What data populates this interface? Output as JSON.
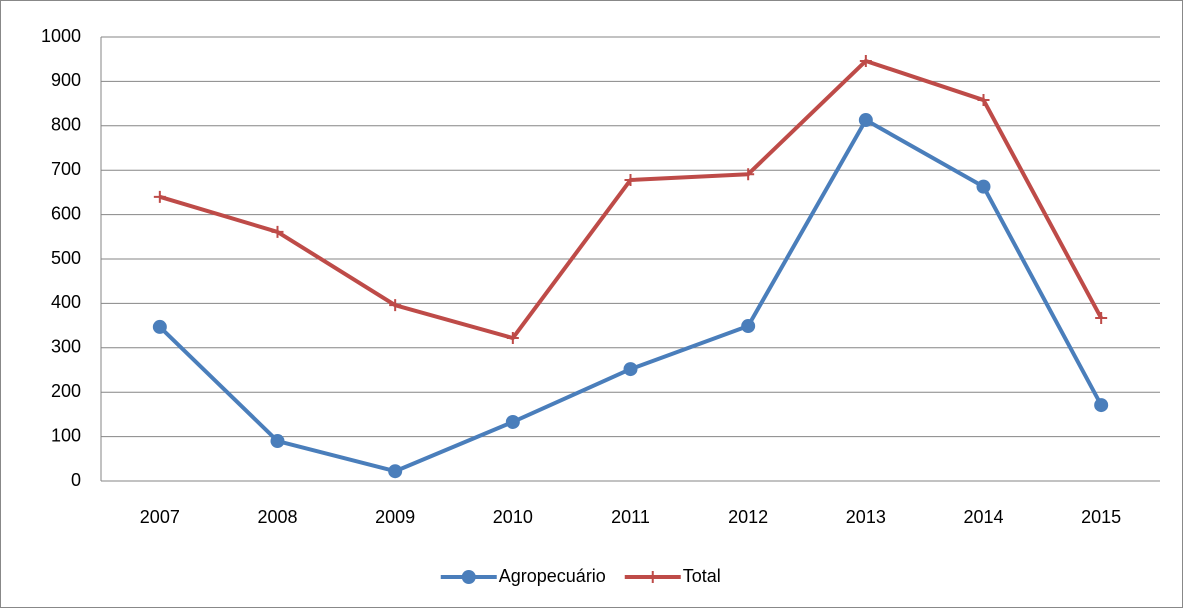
{
  "chart_data": {
    "type": "line",
    "categories": [
      "2007",
      "2008",
      "2009",
      "2010",
      "2011",
      "2012",
      "2013",
      "2014",
      "2015"
    ],
    "series": [
      {
        "name": "Agropecuário",
        "color": "#4a7ebb",
        "marker": "circle",
        "values": [
          347,
          90,
          22,
          133,
          252,
          349,
          813,
          663,
          171
        ]
      },
      {
        "name": "Total",
        "color": "#be4b48",
        "marker": "plus",
        "values": [
          640,
          561,
          396,
          322,
          678,
          691,
          946,
          858,
          367
        ]
      }
    ],
    "ylim": [
      0,
      1000
    ],
    "yticks": [
      0,
      100,
      200,
      300,
      400,
      500,
      600,
      700,
      800,
      900,
      1000
    ],
    "grid": true,
    "legend": "bottom"
  }
}
